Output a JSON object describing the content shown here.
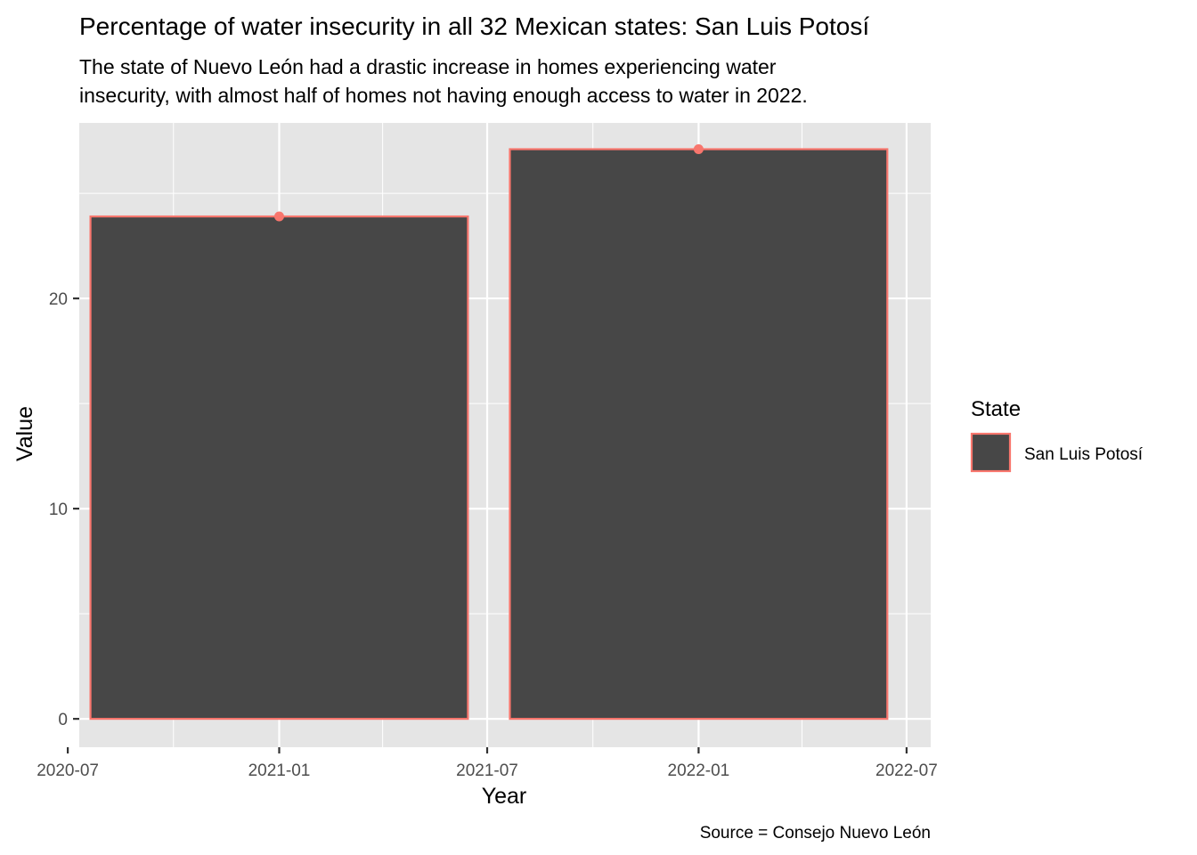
{
  "chart_data": {
    "type": "bar",
    "title": "Percentage of water insecurity in all 32 Mexican states: San Luis Potosí",
    "subtitle_lines": [
      "The state of Nuevo León had a drastic increase in homes experiencing water",
      "insecurity, with almost half of homes not having enough access to water in 2022."
    ],
    "caption": "Source = Consejo Nuevo León",
    "xlabel": "Year",
    "ylabel": "Value",
    "x_type": "date",
    "xlim": [
      "2020-07-11",
      "2022-07-22"
    ],
    "ylim": [
      -1.35,
      28.35
    ],
    "x_ticks": [
      {
        "date": "2020-07-01",
        "label": "2020-07"
      },
      {
        "date": "2021-01-01",
        "label": "2021-01"
      },
      {
        "date": "2021-07-01",
        "label": "2021-07"
      },
      {
        "date": "2022-01-01",
        "label": "2022-01"
      },
      {
        "date": "2022-07-01",
        "label": "2022-07"
      }
    ],
    "x_minor_ticks": [
      "2020-10-01",
      "2021-04-01",
      "2021-10-01",
      "2022-04-01"
    ],
    "y_ticks": [
      0,
      10,
      20
    ],
    "y_minor_ticks": [
      5,
      15,
      25
    ],
    "grid": true,
    "legend": {
      "title": "State",
      "position": "right",
      "entries": [
        {
          "label": "San Luis Potosí",
          "fill": "#474747",
          "outline": "#F8766D"
        }
      ]
    },
    "series": [
      {
        "name": "San Luis Potosí",
        "bars": [
          {
            "x": "2021-01-01",
            "value": 23.9
          },
          {
            "x": "2022-01-01",
            "value": 27.1
          }
        ]
      }
    ],
    "bar_fill": "#474747",
    "bar_outline": "#F8766D",
    "point_color": "#F8766D",
    "panel_background": "#E5E5E5",
    "grid_color": "#FFFFFF"
  }
}
